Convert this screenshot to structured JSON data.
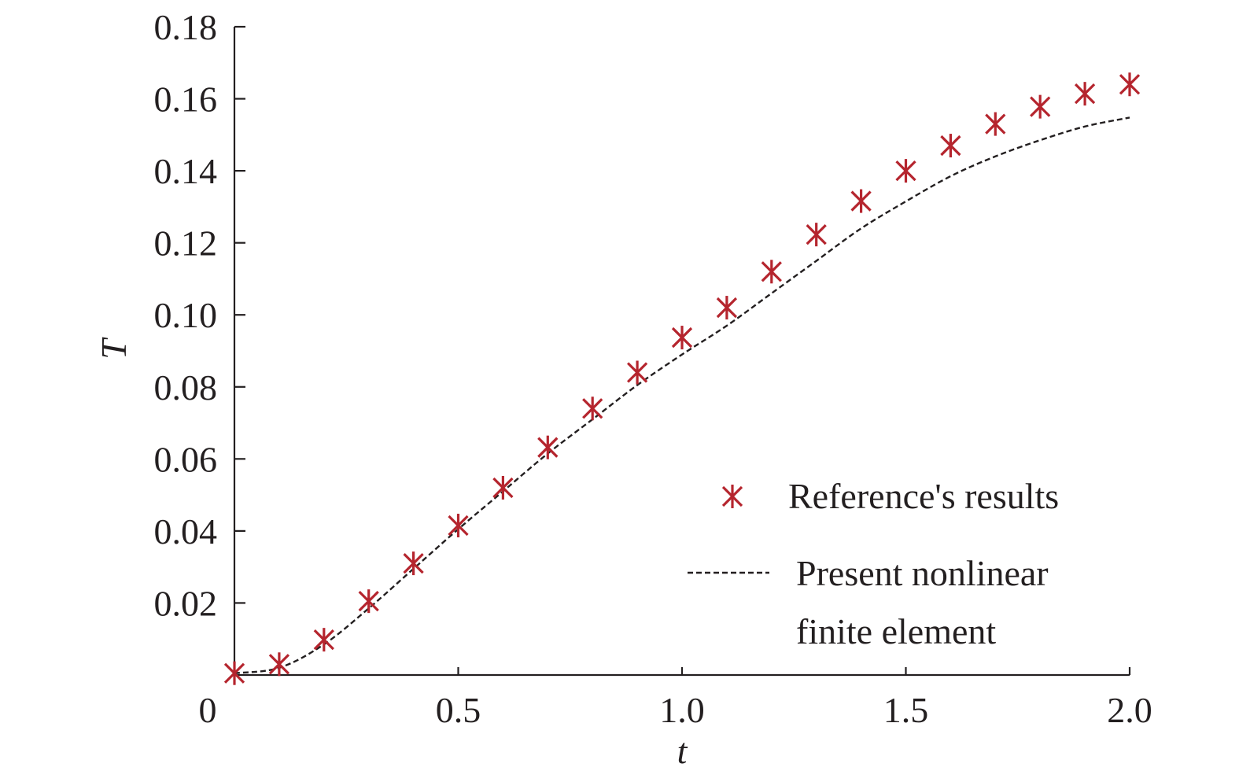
{
  "chart_data": {
    "type": "line",
    "title": "",
    "xlabel": "t",
    "ylabel": "T",
    "xlim": [
      0,
      2.0
    ],
    "ylim": [
      0,
      0.18
    ],
    "x_ticks": [
      0,
      0.5,
      1.0,
      1.5,
      2.0
    ],
    "x_tick_labels": [
      "0",
      "0.5",
      "1.0",
      "1.5",
      "2.0"
    ],
    "y_ticks": [
      0.02,
      0.04,
      0.06,
      0.08,
      0.1,
      0.12,
      0.14,
      0.16,
      0.18
    ],
    "y_tick_labels": [
      "0.02",
      "0.04",
      "0.06",
      "0.08",
      "0.10",
      "0.12",
      "0.14",
      "0.16",
      "0.18"
    ],
    "grid": false,
    "legend_position": "lower-right",
    "series": [
      {
        "name": "Reference's results",
        "kind": "scatter",
        "marker": "asterisk",
        "color": "#b5252e",
        "x": [
          0.0,
          0.1,
          0.2,
          0.3,
          0.4,
          0.5,
          0.6,
          0.7,
          0.8,
          0.9,
          1.0,
          1.1,
          1.2,
          1.3,
          1.4,
          1.5,
          1.6,
          1.7,
          1.8,
          1.9,
          2.0
        ],
        "y": [
          0.0005,
          0.003,
          0.0098,
          0.0205,
          0.031,
          0.0415,
          0.052,
          0.0632,
          0.074,
          0.084,
          0.0937,
          0.102,
          0.112,
          0.1223,
          0.1316,
          0.14,
          0.147,
          0.153,
          0.1578,
          0.1614,
          0.164
        ]
      },
      {
        "name": "Present nonlinear finite element",
        "kind": "line",
        "linestyle": "dashed",
        "color": "#231f20",
        "x": [
          0.0,
          0.1,
          0.2,
          0.3,
          0.4,
          0.5,
          0.6,
          0.7,
          0.8,
          0.9,
          1.0,
          1.1,
          1.2,
          1.3,
          1.4,
          1.5,
          1.6,
          1.7,
          1.8,
          1.9,
          2.0
        ],
        "y": [
          0.0005,
          0.002,
          0.0085,
          0.0185,
          0.0295,
          0.0405,
          0.051,
          0.0615,
          0.071,
          0.0805,
          0.089,
          0.097,
          0.106,
          0.115,
          0.124,
          0.1315,
          0.1385,
          0.144,
          0.1485,
          0.1523,
          0.1548
        ]
      }
    ]
  },
  "legend": {
    "reference_label": "Reference's results",
    "fe_label_line1": "Present nonlinear",
    "fe_label_line2": "finite element"
  }
}
